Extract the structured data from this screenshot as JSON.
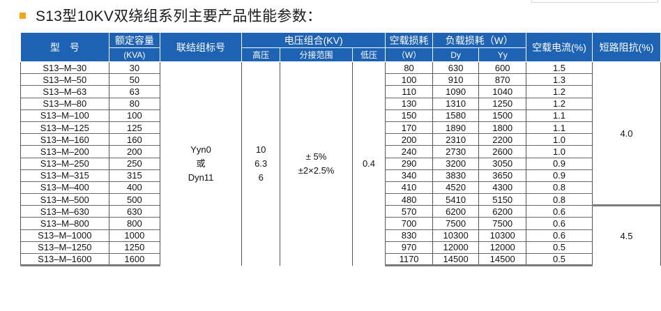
{
  "title": "S13型10KV双绕组系列主要产品性能参数：",
  "colors": {
    "header_bg": "#1e63b3",
    "bullet": "#f2a516"
  },
  "headers": {
    "model": "型　号",
    "capacity": "额定容量",
    "capacity_unit": "(KVA)",
    "connection": "联结组标号",
    "voltage_group": "电压组合(KV)",
    "hv": "高压",
    "tap_range": "分接范围",
    "lv": "低压",
    "no_load_loss": "空载损耗",
    "no_load_loss_unit": "（W）",
    "load_loss": "负载损耗（W）",
    "dy": "Dy",
    "yy": "Yy",
    "no_load_current": "空载电流(%)",
    "impedance": "短路阻抗(%)"
  },
  "merged": {
    "connection_line1": "Yyn0",
    "connection_line2": "或",
    "connection_line3": "Dyn11",
    "hv_line1": "10",
    "hv_line2": "6.3",
    "hv_line3": "6",
    "tap_line1": "± 5%",
    "tap_line2": "±2×2.5%",
    "lv": "0.4",
    "impedance_a": "4.0",
    "impedance_b": "4.5"
  },
  "rows": [
    {
      "model": "S13–M–30",
      "capacity": "30",
      "no_load_loss": "80",
      "dy": "630",
      "yy": "600",
      "current": "1.5"
    },
    {
      "model": "S13–M–50",
      "capacity": "50",
      "no_load_loss": "100",
      "dy": "910",
      "yy": "870",
      "current": "1.3"
    },
    {
      "model": "S13–M–63",
      "capacity": "63",
      "no_load_loss": "110",
      "dy": "1090",
      "yy": "1040",
      "current": "1.2"
    },
    {
      "model": "S13–M–80",
      "capacity": "80",
      "no_load_loss": "130",
      "dy": "1310",
      "yy": "1250",
      "current": "1.2"
    },
    {
      "model": "S13–M–100",
      "capacity": "100",
      "no_load_loss": "150",
      "dy": "1580",
      "yy": "1500",
      "current": "1.1"
    },
    {
      "model": "S13–M–125",
      "capacity": "125",
      "no_load_loss": "170",
      "dy": "1890",
      "yy": "1800",
      "current": "1.1"
    },
    {
      "model": "S13–M–160",
      "capacity": "160",
      "no_load_loss": "200",
      "dy": "2310",
      "yy": "2200",
      "current": "1.0"
    },
    {
      "model": "S13–M–200",
      "capacity": "200",
      "no_load_loss": "240",
      "dy": "2730",
      "yy": "2600",
      "current": "1.0"
    },
    {
      "model": "S13–M–250",
      "capacity": "250",
      "no_load_loss": "290",
      "dy": "3200",
      "yy": "3050",
      "current": "0.9"
    },
    {
      "model": "S13–M–315",
      "capacity": "315",
      "no_load_loss": "340",
      "dy": "3830",
      "yy": "3650",
      "current": "0.9"
    },
    {
      "model": "S13–M–400",
      "capacity": "400",
      "no_load_loss": "410",
      "dy": "4520",
      "yy": "4300",
      "current": "0.8"
    },
    {
      "model": "S13–M–500",
      "capacity": "500",
      "no_load_loss": "480",
      "dy": "5410",
      "yy": "5150",
      "current": "0.8"
    },
    {
      "model": "S13–M–630",
      "capacity": "630",
      "no_load_loss": "570",
      "dy": "6200",
      "yy": "6200",
      "current": "0.6"
    },
    {
      "model": "S13–M–800",
      "capacity": "800",
      "no_load_loss": "700",
      "dy": "7500",
      "yy": "7500",
      "current": "0.6"
    },
    {
      "model": "S13–M–1000",
      "capacity": "1000",
      "no_load_loss": "830",
      "dy": "10300",
      "yy": "10300",
      "current": "0.6"
    },
    {
      "model": "S13–M–1250",
      "capacity": "1250",
      "no_load_loss": "970",
      "dy": "12000",
      "yy": "12000",
      "current": "0.5"
    },
    {
      "model": "S13–M–1600",
      "capacity": "1600",
      "no_load_loss": "1170",
      "dy": "14500",
      "yy": "14500",
      "current": "0.5"
    }
  ]
}
